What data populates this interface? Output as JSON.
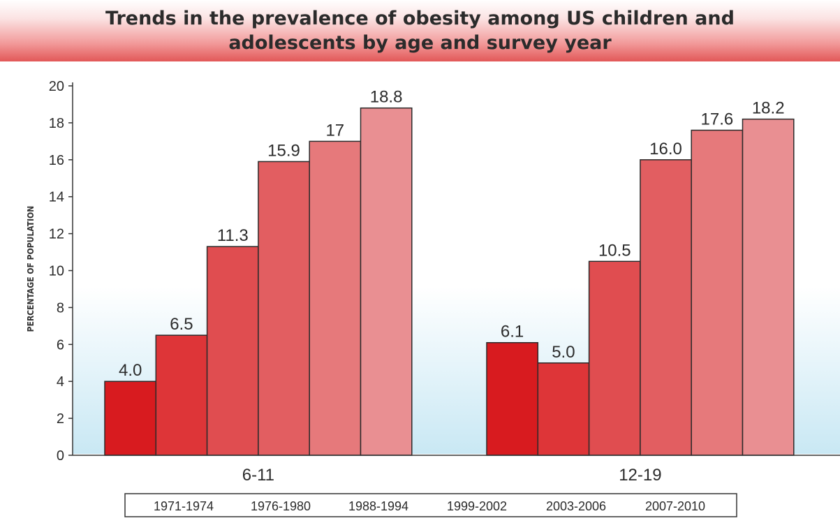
{
  "chart_data": {
    "type": "bar",
    "title": "Trends in the prevalence of obesity among US children and adolescents by age and survey year",
    "ylabel": "PERCENTAGE OF POPULATION",
    "xlabel": "",
    "ylim": [
      0,
      20
    ],
    "yticks": [
      0,
      2,
      4,
      6,
      8,
      10,
      12,
      14,
      16,
      18,
      20
    ],
    "categories": [
      "6-11",
      "12-19"
    ],
    "series": [
      {
        "name": "1971-1974",
        "values": [
          4.0,
          6.1
        ],
        "labels": [
          "4.0",
          "6.1"
        ]
      },
      {
        "name": "1976-1980",
        "values": [
          6.5,
          5.0
        ],
        "labels": [
          "6.5",
          "5.0"
        ]
      },
      {
        "name": "1988-1994",
        "values": [
          11.3,
          10.5
        ],
        "labels": [
          "11.3",
          "10.5"
        ]
      },
      {
        "name": "1999-2002",
        "values": [
          15.9,
          16.0
        ],
        "labels": [
          "15.9",
          "16.0"
        ]
      },
      {
        "name": "2003-2006",
        "values": [
          17,
          17.6
        ],
        "labels": [
          "17",
          "17.6"
        ]
      },
      {
        "name": "2007-2010",
        "values": [
          18.8,
          18.2
        ],
        "labels": [
          "18.8",
          "18.2"
        ]
      }
    ],
    "colors": [
      "#d81b1f",
      "#de3538",
      "#e04d50",
      "#e25e61",
      "#e6797b",
      "#e98f92"
    ],
    "grid": false,
    "legend_position": "bottom"
  }
}
